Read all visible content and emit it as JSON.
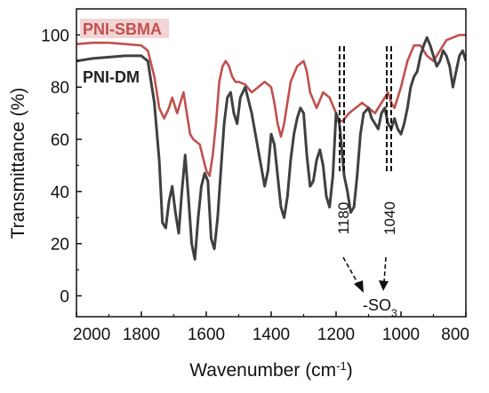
{
  "chart_data": {
    "type": "line",
    "xlabel": "Wavenumber (cm",
    "xlabel_sup": "-1",
    "xlabel_close": ")",
    "ylabel": "Transmittance (%)",
    "xlim": [
      2000,
      800
    ],
    "ylim": [
      -8,
      110
    ],
    "x_reversed": true,
    "x_ticks": [
      2000,
      1800,
      1600,
      1400,
      1200,
      1000,
      800
    ],
    "y_ticks": [
      0,
      20,
      40,
      60,
      80,
      100
    ],
    "series": [
      {
        "name": "PNI-SBMA",
        "color": "#c0504d",
        "x": [
          2000,
          1950,
          1900,
          1850,
          1800,
          1780,
          1760,
          1745,
          1730,
          1715,
          1705,
          1690,
          1680,
          1670,
          1660,
          1650,
          1640,
          1620,
          1600,
          1590,
          1580,
          1570,
          1560,
          1550,
          1540,
          1530,
          1520,
          1510,
          1500,
          1480,
          1460,
          1440,
          1420,
          1400,
          1390,
          1380,
          1370,
          1360,
          1340,
          1320,
          1300,
          1290,
          1280,
          1260,
          1240,
          1220,
          1200,
          1190,
          1180,
          1160,
          1140,
          1120,
          1100,
          1080,
          1070,
          1060,
          1050,
          1040,
          1030,
          1020,
          1000,
          980,
          960,
          940,
          920,
          900,
          880,
          860,
          840,
          820,
          800
        ],
        "y": [
          96.5,
          97,
          97,
          96.5,
          96,
          94,
          84,
          72,
          68,
          72,
          76,
          70,
          74,
          78,
          70,
          62,
          60,
          58,
          48,
          46,
          54,
          66,
          82,
          88,
          90,
          88,
          84,
          82,
          82,
          81,
          78,
          80,
          82,
          80,
          74,
          66,
          61,
          66,
          82,
          88,
          90,
          86,
          78,
          72,
          78,
          76,
          70,
          67,
          67,
          70,
          72,
          74,
          72,
          70,
          72,
          74,
          76,
          78,
          74,
          72,
          80,
          90,
          96,
          96,
          92,
          90,
          94,
          98,
          99,
          100,
          100
        ]
      },
      {
        "name": "PNI-DM",
        "color": "#404040",
        "x": [
          2000,
          1950,
          1900,
          1850,
          1800,
          1780,
          1760,
          1745,
          1735,
          1725,
          1715,
          1705,
          1695,
          1685,
          1675,
          1665,
          1655,
          1645,
          1635,
          1625,
          1615,
          1605,
          1595,
          1585,
          1575,
          1565,
          1555,
          1545,
          1535,
          1525,
          1515,
          1505,
          1495,
          1480,
          1460,
          1440,
          1420,
          1410,
          1400,
          1390,
          1380,
          1370,
          1360,
          1350,
          1340,
          1330,
          1320,
          1310,
          1300,
          1290,
          1280,
          1270,
          1260,
          1250,
          1240,
          1230,
          1220,
          1210,
          1200,
          1190,
          1185,
          1175,
          1165,
          1155,
          1145,
          1135,
          1125,
          1115,
          1100,
          1090,
          1080,
          1070,
          1060,
          1050,
          1040,
          1030,
          1020,
          1010,
          1000,
          990,
          980,
          970,
          960,
          950,
          940,
          930,
          920,
          910,
          900,
          890,
          880,
          870,
          860,
          850,
          840,
          830,
          820,
          810,
          800
        ],
        "y": [
          90,
          91,
          91.5,
          92,
          92,
          90,
          74,
          52,
          28,
          26,
          36,
          42,
          32,
          24,
          40,
          54,
          38,
          20,
          14,
          30,
          42,
          47,
          44,
          22,
          18,
          30,
          48,
          66,
          76,
          78,
          70,
          66,
          76,
          80,
          70,
          56,
          42,
          48,
          62,
          58,
          46,
          34,
          30,
          38,
          52,
          62,
          68,
          72,
          70,
          54,
          42,
          44,
          52,
          56,
          50,
          38,
          34,
          46,
          70,
          66,
          60,
          46,
          40,
          32,
          34,
          46,
          62,
          70,
          72,
          68,
          66,
          64,
          70,
          72,
          66,
          64,
          68,
          64,
          62,
          66,
          72,
          80,
          84,
          86,
          92,
          96,
          99,
          96,
          92,
          88,
          90,
          94,
          92,
          88,
          80,
          86,
          92,
          94,
          90
        ]
      }
    ],
    "annotations": [
      {
        "text": "1180",
        "x": 1180
      },
      {
        "text": "1040",
        "x": 1040
      },
      {
        "text": "-SO",
        "sub": "3"
      }
    ],
    "legend_position": "top-left",
    "grid": false
  }
}
